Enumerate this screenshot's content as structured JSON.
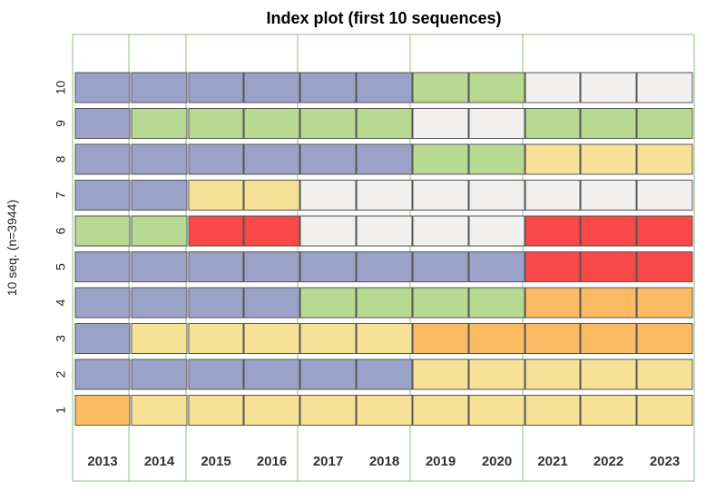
{
  "chart_data": {
    "type": "heatmap",
    "title": "Index plot (first 10 sequences)",
    "ylabel": "10 seq. (n=3944)",
    "xlabel": "",
    "x": [
      "2013",
      "2014",
      "2015",
      "2016",
      "2017",
      "2018",
      "2019",
      "2020",
      "2021",
      "2022",
      "2023"
    ],
    "y": [
      "1",
      "2",
      "3",
      "4",
      "5",
      "6",
      "7",
      "8",
      "9",
      "10"
    ],
    "state_colors": {
      "blue": "#9aa2c8",
      "green": "#b8d992",
      "white": "#f2efef",
      "yellow": "#f6e296",
      "orange": "#fbbb62",
      "red": "#f94848"
    },
    "sequences": [
      {
        "id": "1",
        "states": [
          "orange",
          "yellow",
          "yellow",
          "yellow",
          "yellow",
          "yellow",
          "yellow",
          "yellow",
          "yellow",
          "yellow",
          "yellow"
        ]
      },
      {
        "id": "2",
        "states": [
          "blue",
          "blue",
          "blue",
          "blue",
          "blue",
          "blue",
          "yellow",
          "yellow",
          "yellow",
          "yellow",
          "yellow"
        ]
      },
      {
        "id": "3",
        "states": [
          "blue",
          "yellow",
          "yellow",
          "yellow",
          "yellow",
          "yellow",
          "orange",
          "orange",
          "orange",
          "orange",
          "orange"
        ]
      },
      {
        "id": "4",
        "states": [
          "blue",
          "blue",
          "blue",
          "blue",
          "green",
          "green",
          "green",
          "green",
          "orange",
          "orange",
          "orange"
        ]
      },
      {
        "id": "5",
        "states": [
          "blue",
          "blue",
          "blue",
          "blue",
          "blue",
          "blue",
          "blue",
          "blue",
          "red",
          "red",
          "red"
        ]
      },
      {
        "id": "6",
        "states": [
          "green",
          "green",
          "red",
          "red",
          "white",
          "white",
          "white",
          "white",
          "red",
          "red",
          "red"
        ]
      },
      {
        "id": "7",
        "states": [
          "blue",
          "blue",
          "yellow",
          "yellow",
          "white",
          "white",
          "white",
          "white",
          "white",
          "white",
          "white"
        ]
      },
      {
        "id": "8",
        "states": [
          "blue",
          "blue",
          "blue",
          "blue",
          "blue",
          "blue",
          "green",
          "green",
          "yellow",
          "yellow",
          "yellow"
        ]
      },
      {
        "id": "9",
        "states": [
          "blue",
          "green",
          "green",
          "green",
          "green",
          "green",
          "white",
          "white",
          "green",
          "green",
          "green"
        ]
      },
      {
        "id": "10",
        "states": [
          "blue",
          "blue",
          "blue",
          "blue",
          "blue",
          "blue",
          "green",
          "green",
          "white",
          "white",
          "white"
        ]
      }
    ],
    "column_groups": [
      [
        0
      ],
      [
        1
      ],
      [
        2,
        3
      ],
      [
        4,
        5
      ],
      [
        6,
        7
      ],
      [
        8,
        9,
        10
      ]
    ],
    "group_border_color": "#8fbf7a",
    "grid": true,
    "legend": "none"
  }
}
